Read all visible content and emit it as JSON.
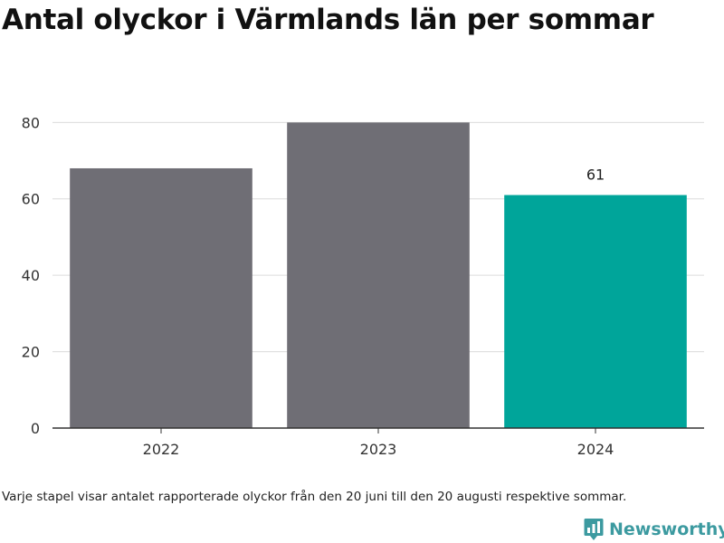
{
  "title": "Antal olyckor i Värmlands län per sommar",
  "footnote": "Varje stapel visar antalet rapporterade olyckor från den 20 juni till den 20 augusti respektive sommar.",
  "brand": {
    "name": "Newsworthy",
    "icon": "newsworthy-logo-icon",
    "color": "#3c9aa0"
  },
  "chart_data": {
    "type": "bar",
    "categories": [
      "2022",
      "2023",
      "2024"
    ],
    "values": [
      68,
      80,
      61
    ],
    "colors": [
      "#6f6e75",
      "#6f6e75",
      "#00a59a"
    ],
    "data_labels": [
      null,
      null,
      "61"
    ],
    "ylim": [
      0,
      86
    ],
    "yticks": [
      0,
      20,
      40,
      60,
      80
    ],
    "grid": true,
    "title": "Antal olyckor i Värmlands län per sommar",
    "xlabel": "",
    "ylabel": ""
  }
}
